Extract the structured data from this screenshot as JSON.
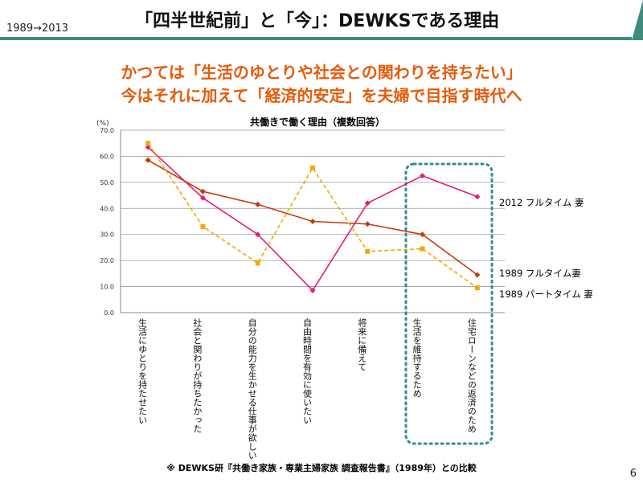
{
  "header": {
    "year_range": "1989→2013",
    "title": "「四半世紀前」と「今」：DEWKSである理由",
    "accent_color": "#3f8c7f"
  },
  "headline": {
    "line1": "かつては「生活のゆとりや社会との関わりを持ちたい」",
    "line2": "今はそれに加えて「経済的安定」を夫婦で目指す時代へ",
    "color": "#e65a0a"
  },
  "chart_data": {
    "type": "line",
    "title": "共働きで働く理由（複数回答）",
    "ylabel": "(%)",
    "ylim": [
      0,
      70
    ],
    "yticks": [
      "0.0",
      "10.0",
      "20.0",
      "30.0",
      "40.0",
      "50.0",
      "60.0",
      "70.0"
    ],
    "categories": [
      "生活にゆとりを持たせたい",
      "社会と関わりが持ちたかった",
      "自分の能力を生かせる仕事が欲しい",
      "自由時間を有効に使いたい",
      "将来に備えて",
      "生活を維持するため",
      "住宅ローンなどの返済のため"
    ],
    "series": [
      {
        "name": "2012 フルタイム 妻",
        "color": "#e8197a",
        "style": "solid",
        "values": [
          63.5,
          44.0,
          30.0,
          8.5,
          42.0,
          52.5,
          44.5
        ]
      },
      {
        "name": "1989 フルタイム妻",
        "color": "#c8380a",
        "style": "solid",
        "values": [
          58.5,
          46.5,
          41.5,
          35.0,
          34.0,
          30.0,
          14.5
        ]
      },
      {
        "name": "1989 パートタイム 妻",
        "color": "#f2a900",
        "style": "dashed",
        "values": [
          65.0,
          33.0,
          19.0,
          55.5,
          23.5,
          24.5,
          9.5
        ]
      }
    ],
    "highlight": {
      "from_category": 5,
      "to_category": 6,
      "color": "#2e8b9a"
    }
  },
  "footnote": "※ DEWKS研『共働き家族・専業主婦家族 調査報告書』（1989年）との比較",
  "page_number": "6"
}
